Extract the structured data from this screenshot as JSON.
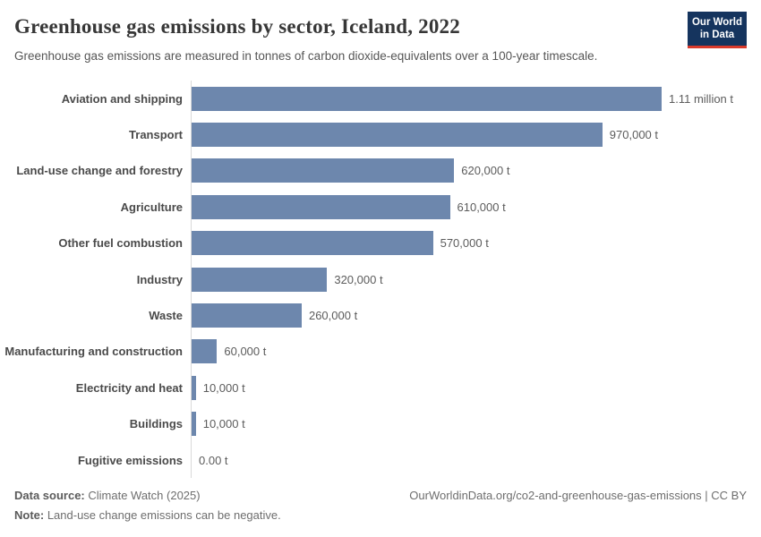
{
  "header": {
    "title": "Greenhouse gas emissions by sector, Iceland, 2022",
    "subtitle": "Greenhouse gas emissions are measured in tonnes of carbon dioxide-equivalents over a 100-year timescale.",
    "logo": {
      "line1": "Our World",
      "line2": "in Data",
      "background": "#15345e",
      "accent": "#d93a2b"
    }
  },
  "chart_data": {
    "type": "bar",
    "orientation": "horizontal",
    "title": "Greenhouse gas emissions by sector, Iceland, 2022",
    "xlabel": "",
    "ylabel": "",
    "unit": "t",
    "xlim": [
      0,
      1110000
    ],
    "grid": false,
    "legend_position": "none",
    "bar_color": "#6d87ad",
    "categories": [
      "Aviation and shipping",
      "Transport",
      "Land-use change and forestry",
      "Agriculture",
      "Other fuel combustion",
      "Industry",
      "Waste",
      "Manufacturing and construction",
      "Electricity and heat",
      "Buildings",
      "Fugitive emissions"
    ],
    "values": [
      1110000,
      970000,
      620000,
      610000,
      570000,
      320000,
      260000,
      60000,
      10000,
      10000,
      0
    ],
    "value_labels": [
      "1.11 million t",
      "970,000 t",
      "620,000 t",
      "610,000 t",
      "570,000 t",
      "320,000 t",
      "260,000 t",
      "60,000 t",
      "10,000 t",
      "10,000 t",
      "0.00 t"
    ]
  },
  "footer": {
    "source_label": "Data source:",
    "source_value": " Climate Watch (2025)",
    "note_label": "Note:",
    "note_value": " Land-use change emissions can be negative.",
    "link": "OurWorldinData.org/co2-and-greenhouse-gas-emissions | CC BY"
  }
}
